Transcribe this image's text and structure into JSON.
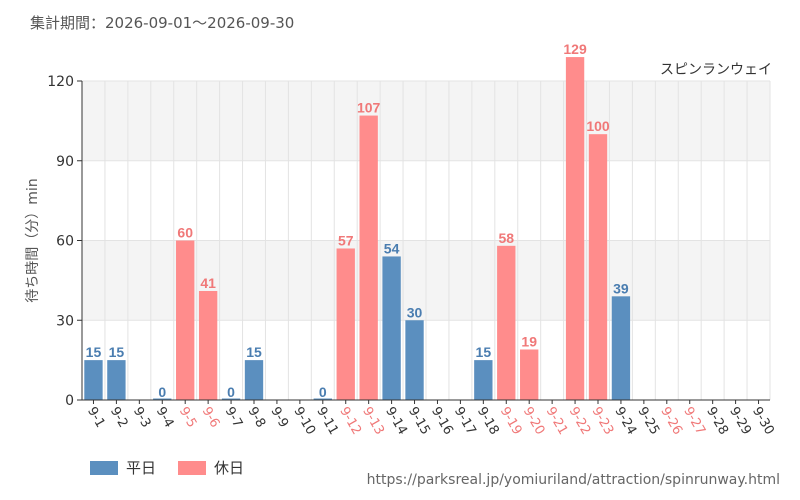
{
  "header": {
    "period_label": "集計期間：2026-09-01～2026-09-30",
    "attraction_name": "スピンランウェイ"
  },
  "legend": {
    "weekday": "平日",
    "holiday": "休日"
  },
  "footer": {
    "source_url": "https://parksreal.jp/yomiuriland/attraction/spinrunway.html"
  },
  "colors": {
    "weekday": "#5b8fbf",
    "holiday": "#ff8c8c",
    "weekday_label": "#4a7db0",
    "holiday_label": "#f07878",
    "band": "#f4f4f4",
    "grid": "#e3e3e3",
    "axis": "#333333",
    "text": "#555555"
  },
  "chart_data": {
    "type": "bar",
    "ylabel": "待ち時間（分）min",
    "ylim": [
      0,
      120
    ],
    "yticks": [
      0,
      30,
      60,
      90,
      120
    ],
    "grid": true,
    "legend_position": "bottom-left",
    "categories": [
      "9-1",
      "9-2",
      "9-3",
      "9-4",
      "9-5",
      "9-6",
      "9-7",
      "9-8",
      "9-9",
      "9-10",
      "9-11",
      "9-12",
      "9-13",
      "9-14",
      "9-15",
      "9-16",
      "9-17",
      "9-18",
      "9-19",
      "9-20",
      "9-21",
      "9-22",
      "9-23",
      "9-24",
      "9-25",
      "9-26",
      "9-27",
      "9-28",
      "9-29",
      "9-30"
    ],
    "day_type": [
      "weekday",
      "weekday",
      "weekday",
      "weekday",
      "holiday",
      "holiday",
      "weekday",
      "weekday",
      "weekday",
      "weekday",
      "weekday",
      "holiday",
      "holiday",
      "weekday",
      "weekday",
      "weekday",
      "weekday",
      "weekday",
      "holiday",
      "holiday",
      "holiday",
      "holiday",
      "holiday",
      "weekday",
      "weekday",
      "holiday",
      "holiday",
      "weekday",
      "weekday",
      "weekday"
    ],
    "values": [
      15,
      15,
      null,
      0,
      60,
      41,
      0,
      15,
      null,
      null,
      0,
      57,
      107,
      54,
      30,
      null,
      null,
      15,
      58,
      19,
      null,
      129,
      100,
      39,
      null,
      null,
      null,
      null,
      null,
      null
    ],
    "series": [
      {
        "name": "平日",
        "key": "weekday"
      },
      {
        "name": "休日",
        "key": "holiday"
      }
    ]
  }
}
